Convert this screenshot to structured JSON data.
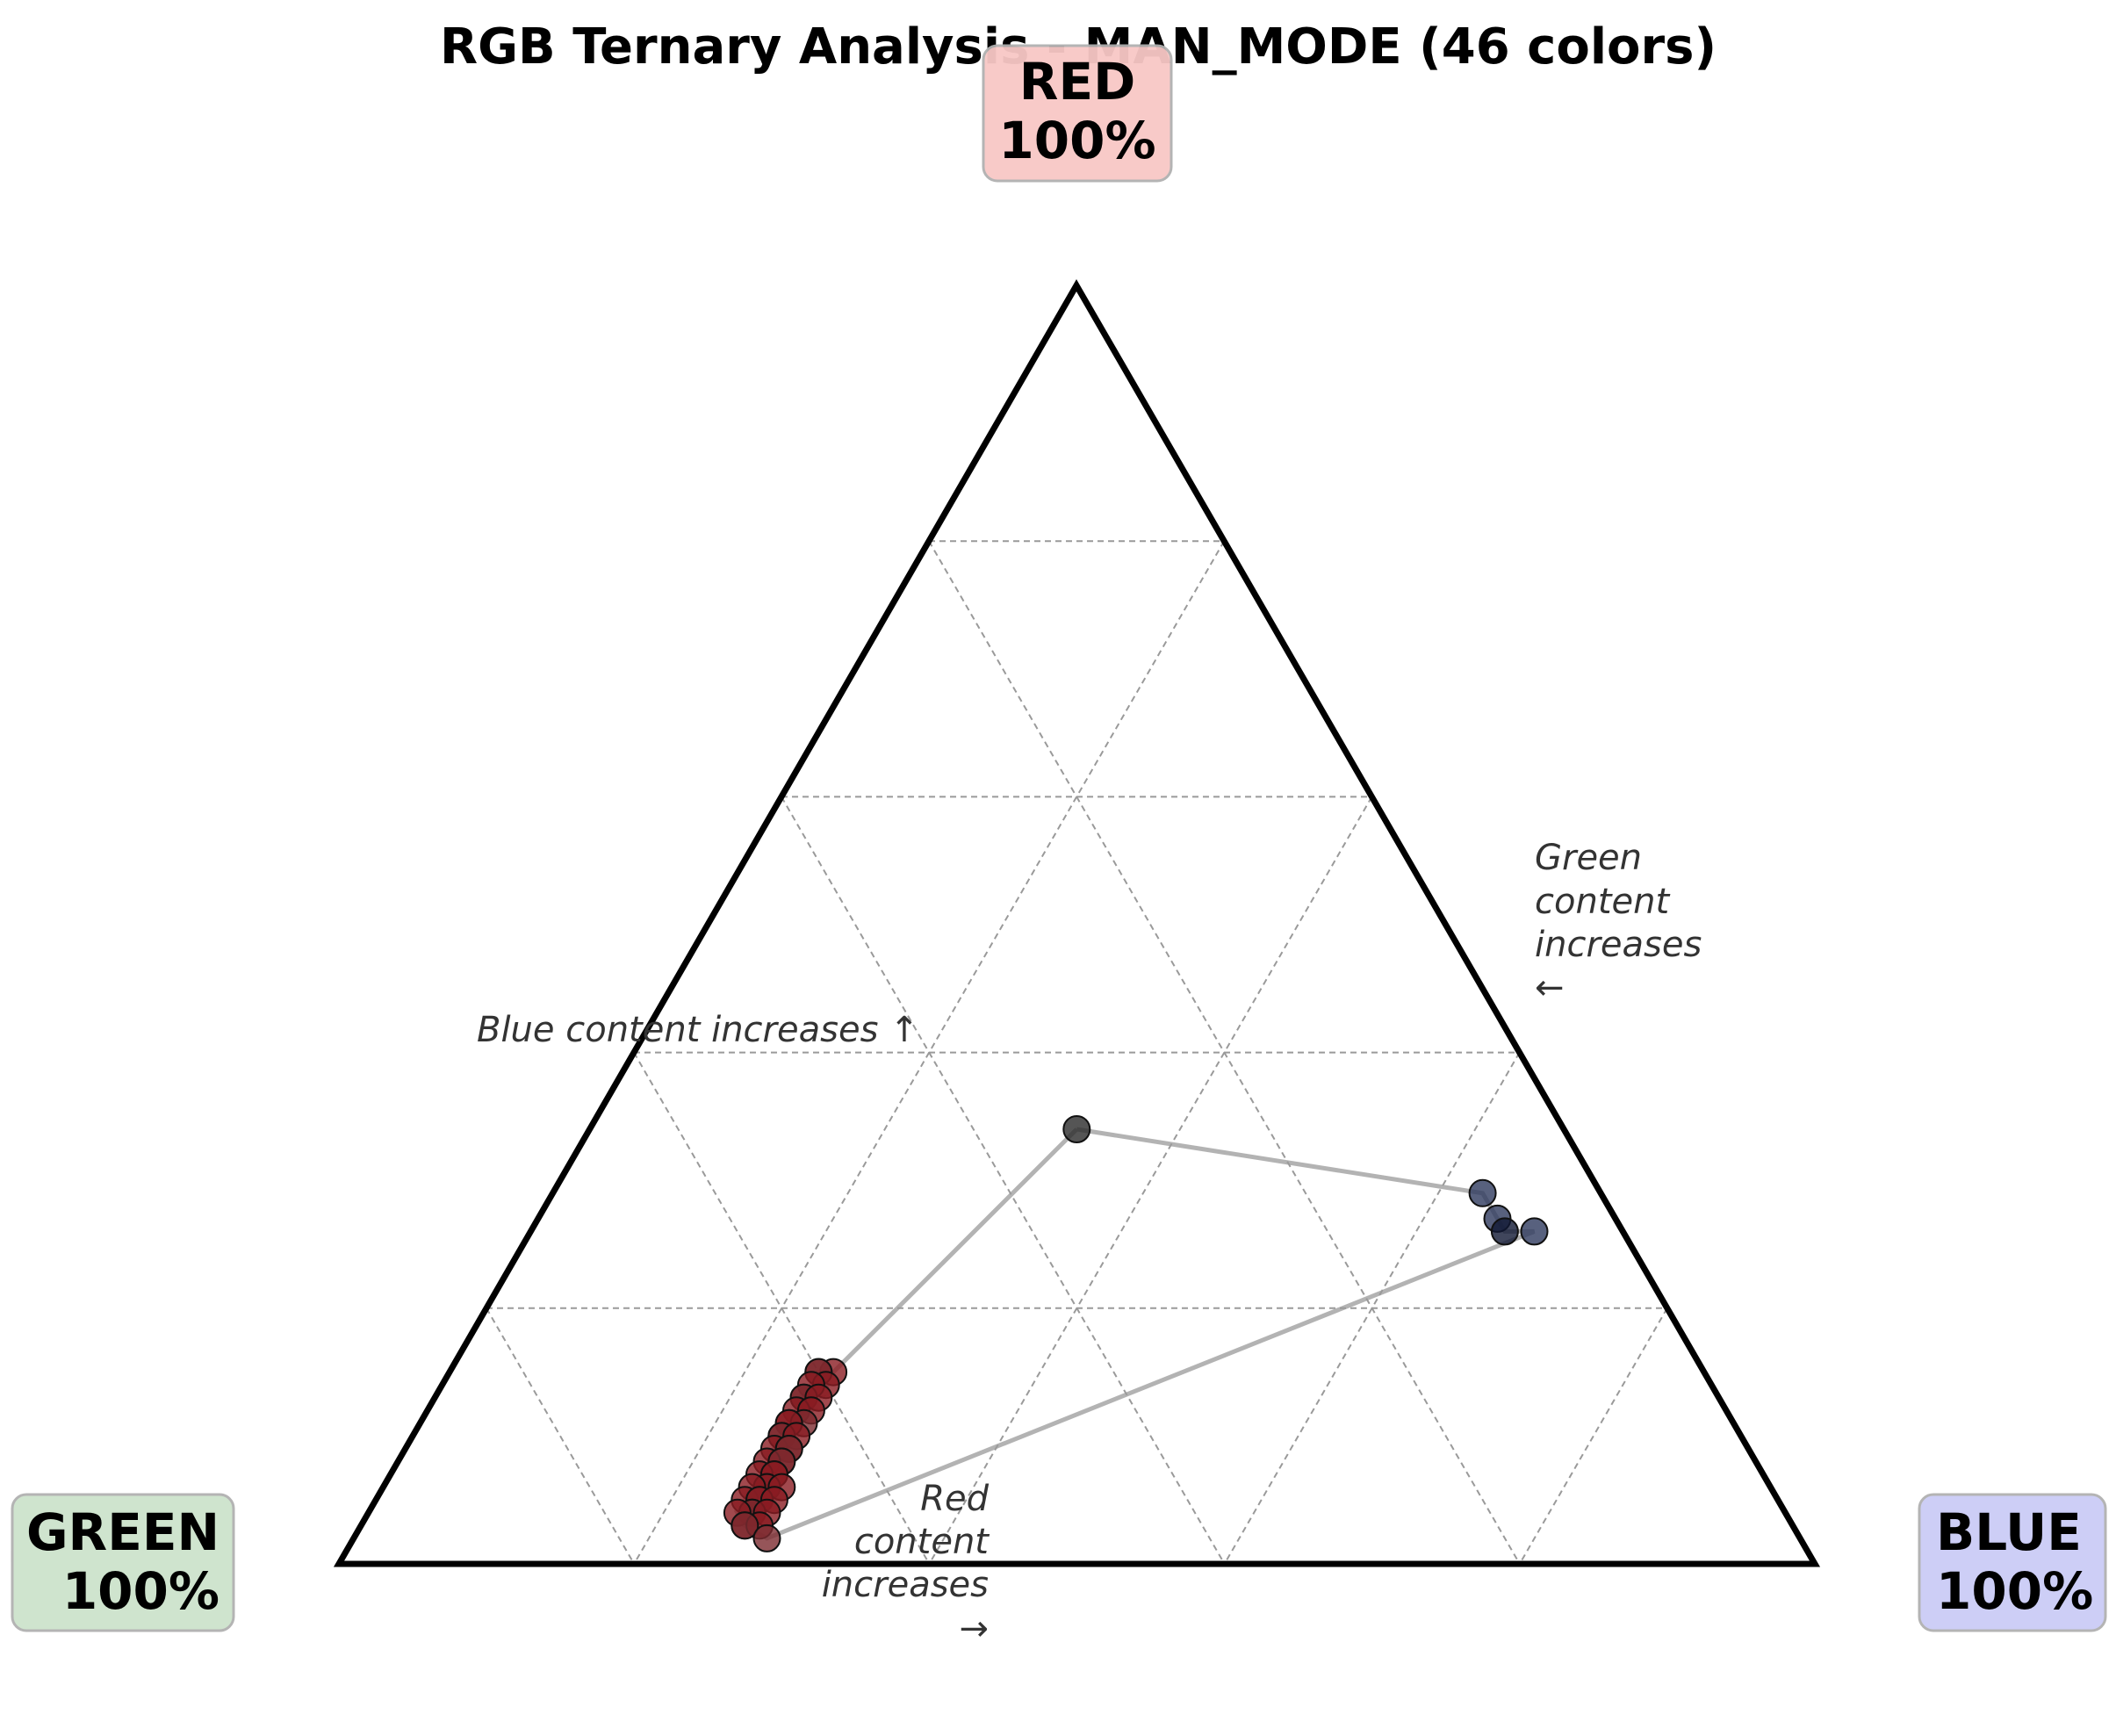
{
  "chart_data": {
    "type": "scatter",
    "subtype": "ternary",
    "title": "RGB Ternary Analysis - MAN_MODE (46 colors)",
    "vertices": {
      "top": {
        "name": "RED",
        "pct": "100%",
        "bg": "#f8c8c6"
      },
      "left": {
        "name": "GREEN",
        "pct": "100%",
        "bg": "#cde3cc"
      },
      "right": {
        "name": "BLUE",
        "pct": "100%",
        "bg": "#cbccf6"
      }
    },
    "annotations": {
      "blue": "Blue content increases ↑",
      "green": [
        "Green",
        "content",
        "increases",
        "←"
      ],
      "red": [
        "Red",
        "content",
        "increases",
        "→"
      ]
    },
    "grid": true,
    "grid_step": 0.2,
    "points": [
      {
        "r": 0.34,
        "g": 0.33,
        "b": 0.33,
        "color": "#2b2b2b"
      },
      {
        "r": 0.15,
        "g": 0.59,
        "b": 0.26,
        "color": "#8a1b22"
      },
      {
        "r": 0.15,
        "g": 0.6,
        "b": 0.25,
        "color": "#8a1b22"
      },
      {
        "r": 0.15,
        "g": 0.6,
        "b": 0.25,
        "color": "#7c2a30"
      },
      {
        "r": 0.14,
        "g": 0.6,
        "b": 0.26,
        "color": "#8a1b22"
      },
      {
        "r": 0.14,
        "g": 0.61,
        "b": 0.25,
        "color": "#8a1b22"
      },
      {
        "r": 0.13,
        "g": 0.62,
        "b": 0.25,
        "color": "#8a1b22"
      },
      {
        "r": 0.13,
        "g": 0.62,
        "b": 0.25,
        "color": "#7c2a30"
      },
      {
        "r": 0.13,
        "g": 0.61,
        "b": 0.26,
        "color": "#8a1b22"
      },
      {
        "r": 0.12,
        "g": 0.63,
        "b": 0.25,
        "color": "#8a1b22"
      },
      {
        "r": 0.12,
        "g": 0.62,
        "b": 0.26,
        "color": "#8a1b22"
      },
      {
        "r": 0.11,
        "g": 0.64,
        "b": 0.25,
        "color": "#8a1b22"
      },
      {
        "r": 0.11,
        "g": 0.63,
        "b": 0.26,
        "color": "#7c2a30"
      },
      {
        "r": 0.11,
        "g": 0.64,
        "b": 0.25,
        "color": "#8a1b22"
      },
      {
        "r": 0.1,
        "g": 0.65,
        "b": 0.25,
        "color": "#8a1b22"
      },
      {
        "r": 0.1,
        "g": 0.65,
        "b": 0.25,
        "color": "#7c2a30"
      },
      {
        "r": 0.1,
        "g": 0.64,
        "b": 0.26,
        "color": "#8a1b22"
      },
      {
        "r": 0.09,
        "g": 0.66,
        "b": 0.25,
        "color": "#8a1b22"
      },
      {
        "r": 0.09,
        "g": 0.65,
        "b": 0.26,
        "color": "#8a1b22"
      },
      {
        "r": 0.09,
        "g": 0.65,
        "b": 0.26,
        "color": "#7c2a30"
      },
      {
        "r": 0.08,
        "g": 0.66,
        "b": 0.26,
        "color": "#8a1b22"
      },
      {
        "r": 0.08,
        "g": 0.67,
        "b": 0.25,
        "color": "#8a1b22"
      },
      {
        "r": 0.08,
        "g": 0.66,
        "b": 0.26,
        "color": "#7c2a30"
      },
      {
        "r": 0.07,
        "g": 0.67,
        "b": 0.26,
        "color": "#8a1b22"
      },
      {
        "r": 0.07,
        "g": 0.68,
        "b": 0.25,
        "color": "#8a1b22"
      },
      {
        "r": 0.07,
        "g": 0.67,
        "b": 0.26,
        "color": "#8a1b22"
      },
      {
        "r": 0.06,
        "g": 0.68,
        "b": 0.26,
        "color": "#7c2a30"
      },
      {
        "r": 0.06,
        "g": 0.68,
        "b": 0.26,
        "color": "#8a1b22"
      },
      {
        "r": 0.06,
        "g": 0.67,
        "b": 0.27,
        "color": "#8a1b22"
      },
      {
        "r": 0.06,
        "g": 0.69,
        "b": 0.25,
        "color": "#8a1b22"
      },
      {
        "r": 0.05,
        "g": 0.7,
        "b": 0.25,
        "color": "#8a1b22"
      },
      {
        "r": 0.05,
        "g": 0.69,
        "b": 0.26,
        "color": "#7c2a30"
      },
      {
        "r": 0.05,
        "g": 0.69,
        "b": 0.26,
        "color": "#8a1b22"
      },
      {
        "r": 0.05,
        "g": 0.68,
        "b": 0.27,
        "color": "#8a1b22"
      },
      {
        "r": 0.04,
        "g": 0.7,
        "b": 0.26,
        "color": "#8a1b22"
      },
      {
        "r": 0.04,
        "g": 0.7,
        "b": 0.26,
        "color": "#7c2a30"
      },
      {
        "r": 0.04,
        "g": 0.69,
        "b": 0.27,
        "color": "#8a1b22"
      },
      {
        "r": 0.04,
        "g": 0.71,
        "b": 0.25,
        "color": "#8a1b22"
      },
      {
        "r": 0.03,
        "g": 0.71,
        "b": 0.26,
        "color": "#8a1b22"
      },
      {
        "r": 0.03,
        "g": 0.7,
        "b": 0.27,
        "color": "#8a1b22"
      },
      {
        "r": 0.03,
        "g": 0.71,
        "b": 0.26,
        "color": "#7c2a30"
      },
      {
        "r": 0.02,
        "g": 0.7,
        "b": 0.28,
        "color": "#7c2a30"
      },
      {
        "r": 0.29,
        "g": 0.08,
        "b": 0.63,
        "color": "#2e3a5e"
      },
      {
        "r": 0.27,
        "g": 0.08,
        "b": 0.65,
        "color": "#2e3a5e"
      },
      {
        "r": 0.26,
        "g": 0.08,
        "b": 0.66,
        "color": "#101833"
      },
      {
        "r": 0.26,
        "g": 0.06,
        "b": 0.68,
        "color": "#2e3a5e"
      }
    ],
    "path_order": [
      0,
      1,
      2,
      3,
      4,
      5,
      6,
      7,
      8,
      9,
      10,
      11,
      12,
      13,
      14,
      15,
      16,
      17,
      18,
      19,
      20,
      21,
      22,
      23,
      24,
      25,
      26,
      27,
      28,
      29,
      30,
      31,
      32,
      33,
      34,
      35,
      36,
      37,
      38,
      39,
      40,
      41,
      45,
      44,
      43,
      42,
      0
    ]
  }
}
